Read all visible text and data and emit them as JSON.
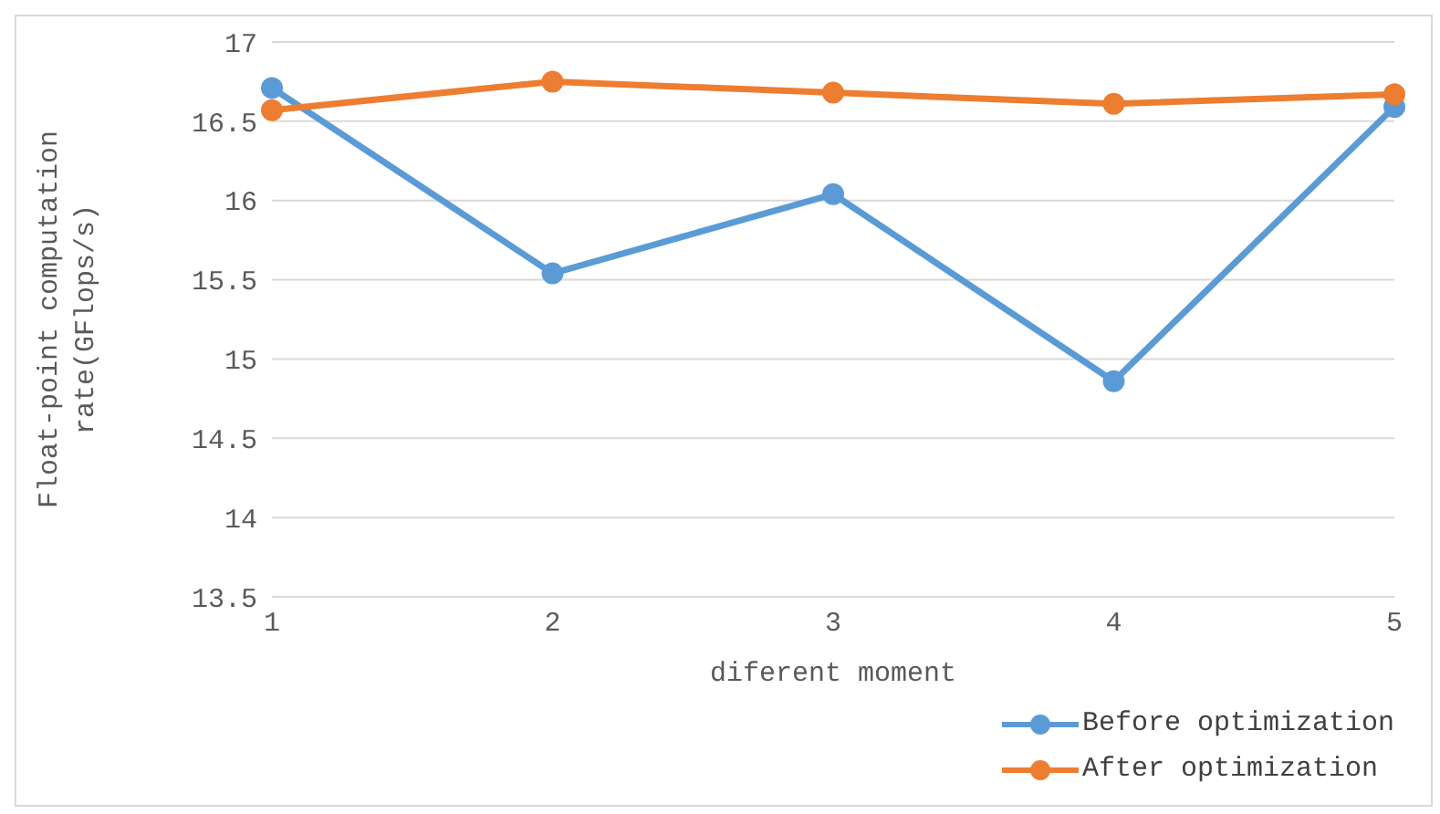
{
  "chart_data": {
    "type": "line",
    "xlabel": "diferent moment",
    "ylabel": "Float-point computation rate(GFlops/s)",
    "categories": [
      "1",
      "2",
      "3",
      "4",
      "5"
    ],
    "series": [
      {
        "name": "Before optimization",
        "color": "#5b9bd5",
        "values": [
          16.71,
          15.54,
          16.04,
          14.86,
          16.59
        ]
      },
      {
        "name": "After optimization",
        "color": "#ed7d31",
        "values": [
          16.57,
          16.75,
          16.68,
          16.61,
          16.67
        ]
      }
    ],
    "ylim": [
      13.5,
      17
    ],
    "yticks": [
      13.5,
      14,
      14.5,
      15,
      15.5,
      16,
      16.5,
      17
    ],
    "grid": "y",
    "legend": "bottom right",
    "marker": "circle",
    "line_style": "solid"
  }
}
